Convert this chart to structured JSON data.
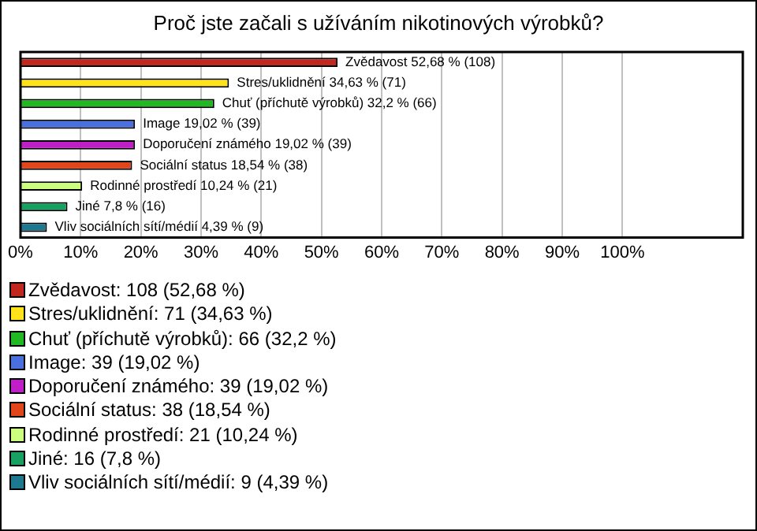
{
  "chart_data": {
    "type": "bar",
    "orientation": "horizontal",
    "title": "Proč jste začali s užíváním nikotinových výrobků?",
    "categories": [
      null,
      null,
      null,
      null,
      null,
      null,
      null,
      null,
      null
    ],
    "xlim": [
      0,
      120
    ],
    "xticks": [
      {
        "value": 0,
        "label": "0%"
      },
      {
        "value": 10,
        "label": "10%"
      },
      {
        "value": 20,
        "label": "20%"
      },
      {
        "value": 30,
        "label": "30%"
      },
      {
        "value": 40,
        "label": "40%"
      },
      {
        "value": 50,
        "label": "50%"
      },
      {
        "value": 60,
        "label": "60%"
      },
      {
        "value": 70,
        "label": "70%"
      },
      {
        "value": 80,
        "label": "80%"
      },
      {
        "value": 90,
        "label": "90%"
      },
      {
        "value": 100,
        "label": "100%"
      }
    ],
    "grid": "x",
    "legend": "bottom",
    "series": [
      {
        "name": "Zvědavost: 108 (52,68 %)",
        "color": "#c0281e",
        "values": [
          52.68,
          null,
          null,
          null,
          null,
          null,
          null,
          null,
          null
        ],
        "value_labels": [
          "Zvědavost 52,68 % (108)",
          null,
          null,
          null,
          null,
          null,
          null,
          null,
          null
        ]
      },
      {
        "name": "Stres/uklidnění: 71 (34,63 %)",
        "color": "#ffe21a",
        "values": [
          null,
          34.63,
          null,
          null,
          null,
          null,
          null,
          null,
          null
        ],
        "value_labels": [
          null,
          "Stres/uklidnění 34,63 % (71)",
          null,
          null,
          null,
          null,
          null,
          null,
          null
        ]
      },
      {
        "name": "Chuť (příchutě výrobků): 66 (32,2 %)",
        "color": "#22b822",
        "values": [
          null,
          null,
          32.2,
          null,
          null,
          null,
          null,
          null,
          null
        ],
        "value_labels": [
          null,
          null,
          "Chuť (příchutě výrobků) 32,2 % (66)",
          null,
          null,
          null,
          null,
          null,
          null
        ]
      },
      {
        "name": "Image: 39 (19,02 %)",
        "color": "#4a70e0",
        "values": [
          null,
          null,
          null,
          19.02,
          null,
          null,
          null,
          null,
          null
        ],
        "value_labels": [
          null,
          null,
          null,
          "Image 19,02 % (39)",
          null,
          null,
          null,
          null,
          null
        ]
      },
      {
        "name": "Doporučení známého: 39 (19,02 %)",
        "color": "#c01ec8",
        "values": [
          null,
          null,
          null,
          null,
          19.02,
          null,
          null,
          null,
          null
        ],
        "value_labels": [
          null,
          null,
          null,
          null,
          "Doporučení známého 19,02 % (39)",
          null,
          null,
          null,
          null
        ]
      },
      {
        "name": "Sociální status: 38 (18,54 %)",
        "color": "#e0461a",
        "values": [
          null,
          null,
          null,
          null,
          null,
          18.54,
          null,
          null,
          null
        ],
        "value_labels": [
          null,
          null,
          null,
          null,
          null,
          "Sociální status 18,54 % (38)",
          null,
          null,
          null
        ]
      },
      {
        "name": "Rodinné prostředí: 21 (10,24 %)",
        "color": "#ccff80",
        "values": [
          null,
          null,
          null,
          null,
          null,
          null,
          10.24,
          null,
          null
        ],
        "value_labels": [
          null,
          null,
          null,
          null,
          null,
          null,
          "Rodinné prostředí 10,24 % (21)",
          null,
          null
        ]
      },
      {
        "name": "Jiné: 16 (7,8 %)",
        "color": "#18a060",
        "values": [
          null,
          null,
          null,
          null,
          null,
          null,
          null,
          7.8,
          null
        ],
        "value_labels": [
          null,
          null,
          null,
          null,
          null,
          null,
          null,
          "Jiné 7,8 % (16)",
          null
        ]
      },
      {
        "name": "Vliv sociálních sítí/médií: 9 (4,39 %)",
        "color": "#1e7890",
        "values": [
          null,
          null,
          null,
          null,
          null,
          null,
          null,
          null,
          4.39
        ],
        "value_labels": [
          null,
          null,
          null,
          null,
          null,
          null,
          null,
          null,
          "Vliv sociálních sítí/médií 4,39 % (9)"
        ]
      }
    ]
  }
}
